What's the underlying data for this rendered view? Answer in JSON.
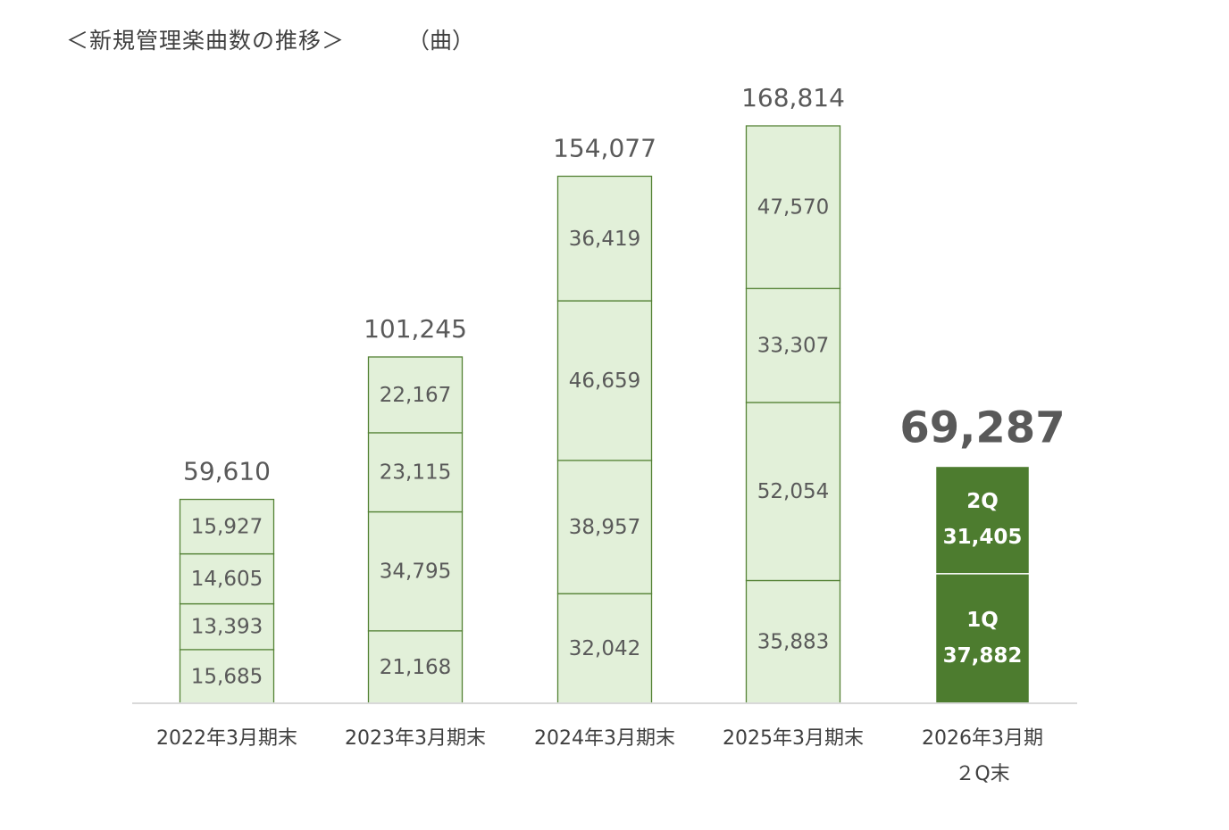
{
  "title": "＜新規管理楽曲数の推移＞",
  "unit": "（曲）",
  "colors": {
    "light_fill": "#e2f0d9",
    "light_stroke": "#548235",
    "dark_fill": "#4d7c2f",
    "axis": "#d9d9d9",
    "segment_text": "#595959",
    "total_text": "#595959",
    "dark_text": "#ffffff"
  },
  "chart_data": {
    "type": "bar",
    "stacked": true,
    "title": "＜新規管理楽曲数の推移＞",
    "ylabel": "（曲）",
    "categories": [
      [
        "2022年3月期末"
      ],
      [
        "2023年3月期末"
      ],
      [
        "2024年3月期末"
      ],
      [
        "2025年3月期末"
      ],
      [
        "2026年3月期",
        "２Q末"
      ]
    ],
    "totals": [
      "59,610",
      "101,245",
      "154,077",
      "168,814",
      "69,287"
    ],
    "bars": [
      {
        "segments": [
          {
            "value": 15685,
            "label": "15,685"
          },
          {
            "value": 13393,
            "label": "13,393"
          },
          {
            "value": 14605,
            "label": "14,605"
          },
          {
            "value": 15927,
            "label": "15,927"
          }
        ]
      },
      {
        "segments": [
          {
            "value": 21168,
            "label": "21,168"
          },
          {
            "value": 34795,
            "label": "34,795"
          },
          {
            "value": 23115,
            "label": "23,115"
          },
          {
            "value": 22167,
            "label": "22,167"
          }
        ]
      },
      {
        "segments": [
          {
            "value": 32042,
            "label": "32,042"
          },
          {
            "value": 38957,
            "label": "38,957"
          },
          {
            "value": 46659,
            "label": "46,659"
          },
          {
            "value": 36419,
            "label": "36,419"
          }
        ]
      },
      {
        "segments": [
          {
            "value": 35883,
            "label": "35,883"
          },
          {
            "value": 52054,
            "label": "52,054"
          },
          {
            "value": 33307,
            "label": "33,307"
          },
          {
            "value": 47570,
            "label": "47,570"
          }
        ]
      },
      {
        "highlight": true,
        "segments": [
          {
            "value": 37882,
            "label": "37,882",
            "quarter": "1Q"
          },
          {
            "value": 31405,
            "label": "31,405",
            "quarter": "2Q"
          }
        ]
      }
    ],
    "grid": false,
    "legend": "none"
  }
}
